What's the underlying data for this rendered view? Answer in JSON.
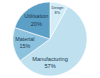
{
  "chart_data": {
    "type": "pie",
    "categories": [
      "Design",
      "Manufacturing",
      "Material",
      "Utilisation"
    ],
    "values": [
      8,
      57,
      15,
      20
    ],
    "value_labels": [
      "8%",
      "57%",
      "15%",
      "20%"
    ],
    "colors": [
      "#d4ecf6",
      "#bfe0ef",
      "#8cc2dd",
      "#5c9fc6"
    ],
    "data_labels": true
  }
}
